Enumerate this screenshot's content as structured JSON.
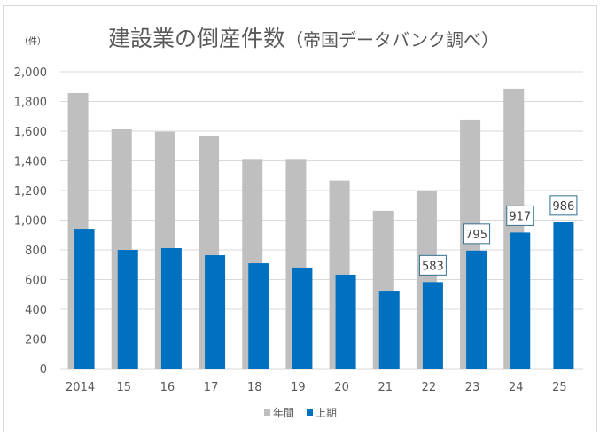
{
  "chart_data": {
    "type": "bar",
    "title": "建設業の倒産件数",
    "subtitle": "（帝国データバンク調べ）",
    "ylabel": "（件）",
    "xlabel": "",
    "ylim": [
      0,
      2000
    ],
    "yticks": [
      0,
      200,
      400,
      600,
      800,
      1000,
      1200,
      1400,
      1600,
      1800,
      2000
    ],
    "ytick_labels": [
      "0",
      "200",
      "400",
      "600",
      "800",
      "1,000",
      "1,200",
      "1,400",
      "1,600",
      "1,800",
      "2,000"
    ],
    "grid": true,
    "categories": [
      "2014",
      "15",
      "16",
      "17",
      "18",
      "19",
      "20",
      "21",
      "22",
      "23",
      "24",
      "25"
    ],
    "series": [
      {
        "name": "年間",
        "color": "#bfbfbf",
        "values": [
          1857,
          1612,
          1596,
          1570,
          1413,
          1413,
          1268,
          1063,
          1198,
          1678,
          1887,
          null
        ]
      },
      {
        "name": "上期",
        "color": "#0070c0",
        "values": [
          943,
          800,
          812,
          764,
          710,
          681,
          633,
          525,
          583,
          795,
          917,
          986
        ]
      }
    ],
    "data_labels": [
      {
        "series": "上期",
        "category": "22",
        "text": "583"
      },
      {
        "series": "上期",
        "category": "23",
        "text": "795"
      },
      {
        "series": "上期",
        "category": "24",
        "text": "917"
      },
      {
        "series": "上期",
        "category": "25",
        "text": "986"
      }
    ],
    "legend": {
      "position": "bottom",
      "entries": [
        "年間",
        "上期"
      ]
    },
    "label_border_color": "#31708f"
  }
}
